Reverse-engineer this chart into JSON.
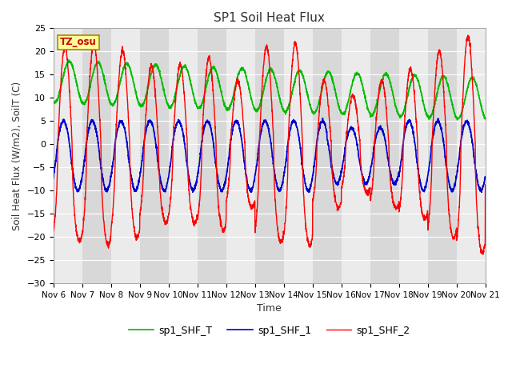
{
  "title": "SP1 Soil Heat Flux",
  "xlabel": "Time",
  "ylabel": "Soil Heat Flux (W/m2), SoilT (C)",
  "ylim": [
    -30,
    25
  ],
  "xlim": [
    0,
    15
  ],
  "yticks": [
    -30,
    -25,
    -20,
    -15,
    -10,
    -5,
    0,
    5,
    10,
    15,
    20,
    25
  ],
  "xtick_labels": [
    "Nov 6",
    "Nov 7",
    "Nov 8",
    "Nov 9",
    "Nov 10",
    "Nov 11",
    "Nov 12",
    "Nov 13",
    "Nov 14",
    "Nov 15",
    "Nov 16",
    "Nov 17",
    "Nov 18",
    "Nov 19",
    "Nov 20",
    "Nov 21"
  ],
  "color_shf2": "#ff0000",
  "color_shf1": "#0000cc",
  "color_shft": "#00bb00",
  "bg_color_light": "#ebebeb",
  "bg_color_dark": "#d8d8d8",
  "grid_color": "#ffffff",
  "label_shf2": "sp1_SHF_2",
  "label_shf1": "sp1_SHF_1",
  "label_shft": "sp1_SHF_T",
  "tz_label": "TZ_osu",
  "tz_text_color": "#cc0000",
  "tz_bg_color": "#ffff99",
  "tz_border_color": "#aa8800"
}
